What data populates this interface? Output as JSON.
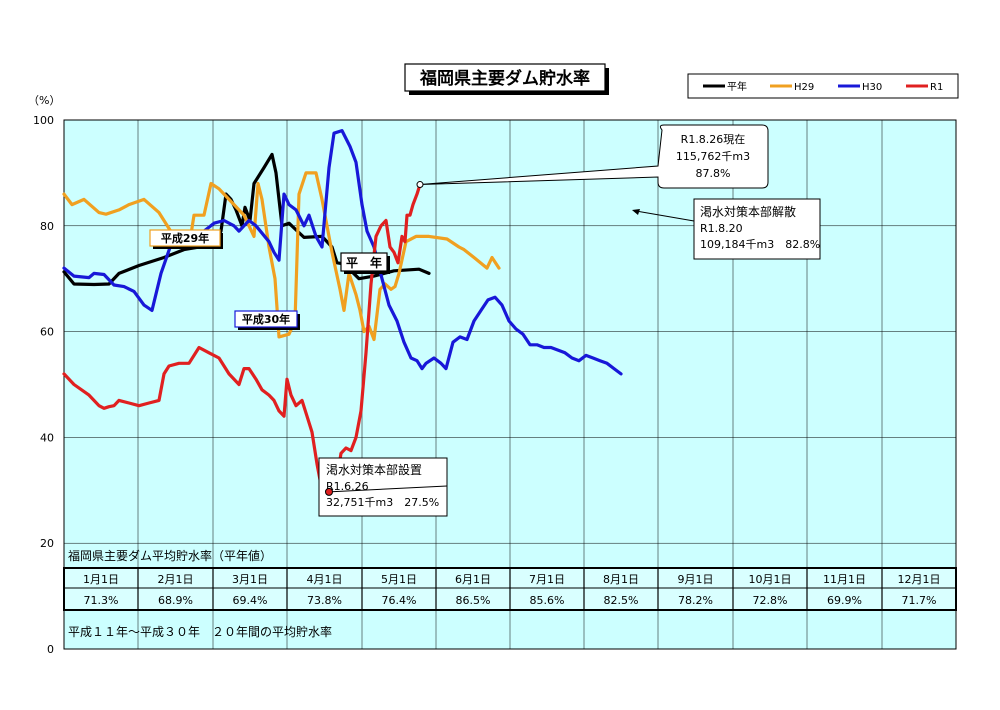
{
  "chart_data": {
    "type": "line",
    "title": "福岡県主要ダム貯水率",
    "ylabel": "（%）",
    "ylim": [
      0,
      100
    ],
    "yticks": [
      0,
      20,
      40,
      60,
      80,
      100
    ],
    "grid": true,
    "legend_position": "top-right",
    "series": [
      {
        "key": "avg",
        "name": "平年",
        "color": "#000000",
        "label": "平　年",
        "points": [
          [
            0,
            71.3
          ],
          [
            10,
            69
          ],
          [
            30,
            68.9
          ],
          [
            45,
            69
          ],
          [
            55,
            71
          ],
          [
            75,
            72.5
          ],
          [
            100,
            74
          ],
          [
            120,
            75.5
          ],
          [
            135,
            76
          ],
          [
            145,
            76
          ],
          [
            150,
            76.3
          ],
          [
            152,
            77
          ],
          [
            157,
            79
          ],
          [
            162,
            86
          ],
          [
            167,
            85
          ],
          [
            172,
            83
          ],
          [
            178,
            80
          ],
          [
            181,
            83.5
          ],
          [
            186,
            81
          ],
          [
            190,
            88
          ],
          [
            200,
            91
          ],
          [
            208,
            93.5
          ],
          [
            212,
            90
          ],
          [
            218,
            80
          ],
          [
            225,
            80.5
          ],
          [
            240,
            77.8
          ],
          [
            258,
            78
          ],
          [
            268,
            76
          ],
          [
            273,
            73
          ],
          [
            280,
            72.8
          ],
          [
            295,
            70
          ],
          [
            310,
            70.5
          ],
          [
            330,
            71.5
          ],
          [
            355,
            71.8
          ],
          [
            365,
            71
          ]
        ]
      },
      {
        "key": "h29",
        "name": "H29",
        "color": "#f0a020",
        "label": "平成29年",
        "points": [
          [
            0,
            86
          ],
          [
            8,
            84
          ],
          [
            20,
            85
          ],
          [
            35,
            82.5
          ],
          [
            42,
            82.2
          ],
          [
            55,
            83
          ],
          [
            65,
            84
          ],
          [
            80,
            85
          ],
          [
            95,
            82.5
          ],
          [
            110,
            78
          ],
          [
            120,
            76.5
          ],
          [
            125,
            76
          ],
          [
            130,
            82
          ],
          [
            140,
            82
          ],
          [
            147,
            88
          ],
          [
            155,
            87
          ],
          [
            165,
            85
          ],
          [
            170,
            84
          ],
          [
            180,
            82
          ],
          [
            190,
            78
          ],
          [
            194,
            88
          ],
          [
            198,
            85
          ],
          [
            205,
            76
          ],
          [
            211,
            70
          ],
          [
            215,
            59
          ],
          [
            225,
            59.5
          ],
          [
            231,
            62
          ],
          [
            235,
            86
          ],
          [
            242,
            90
          ],
          [
            252,
            90
          ],
          [
            258,
            85
          ],
          [
            263,
            80
          ],
          [
            268,
            75
          ],
          [
            276,
            68
          ],
          [
            280,
            64
          ],
          [
            285,
            71
          ],
          [
            292,
            67
          ],
          [
            296,
            64
          ],
          [
            300,
            60
          ],
          [
            305,
            61
          ],
          [
            310,
            58.5
          ],
          [
            316,
            68
          ],
          [
            321,
            69
          ],
          [
            327,
            68
          ],
          [
            331,
            68.5
          ],
          [
            335,
            71
          ],
          [
            342,
            77
          ],
          [
            352,
            78
          ],
          [
            365,
            78
          ],
          [
            383,
            77.5
          ],
          [
            395,
            76
          ],
          [
            400,
            75.5
          ],
          [
            410,
            74
          ],
          [
            423,
            72
          ],
          [
            428,
            74
          ],
          [
            435,
            72
          ]
        ]
      },
      {
        "key": "h30",
        "name": "H30",
        "color": "#1818d8",
        "label": "平成30年",
        "points": [
          [
            0,
            72
          ],
          [
            10,
            70.5
          ],
          [
            25,
            70.2
          ],
          [
            30,
            71
          ],
          [
            40,
            70.8
          ],
          [
            50,
            68.8
          ],
          [
            60,
            68.5
          ],
          [
            70,
            67.6
          ],
          [
            80,
            65
          ],
          [
            88,
            64
          ],
          [
            97,
            71
          ],
          [
            108,
            77
          ],
          [
            115,
            78.5
          ],
          [
            122,
            78.5
          ],
          [
            132,
            78
          ],
          [
            140,
            79
          ],
          [
            150,
            80.5
          ],
          [
            160,
            81
          ],
          [
            170,
            80
          ],
          [
            175,
            79
          ],
          [
            180,
            80
          ],
          [
            185,
            81
          ],
          [
            192,
            80
          ],
          [
            205,
            77
          ],
          [
            210,
            75
          ],
          [
            215,
            73.5
          ],
          [
            220,
            86
          ],
          [
            225,
            84
          ],
          [
            232,
            83
          ],
          [
            240,
            80
          ],
          [
            245,
            82
          ],
          [
            252,
            78
          ],
          [
            258,
            76
          ],
          [
            265,
            91
          ],
          [
            270,
            97.5
          ],
          [
            278,
            98
          ],
          [
            286,
            95
          ],
          [
            292,
            92
          ],
          [
            298,
            84
          ],
          [
            303,
            79
          ],
          [
            310,
            76
          ],
          [
            318,
            70
          ],
          [
            325,
            65
          ],
          [
            333,
            62
          ],
          [
            340,
            58
          ],
          [
            347,
            55
          ],
          [
            353,
            54.5
          ],
          [
            358,
            53
          ],
          [
            362,
            54
          ],
          [
            370,
            55
          ],
          [
            377,
            54
          ],
          [
            382,
            53
          ],
          [
            389,
            58
          ],
          [
            396,
            59
          ],
          [
            403,
            58.5
          ],
          [
            410,
            62
          ],
          [
            417,
            64
          ],
          [
            424,
            66
          ],
          [
            431,
            66.5
          ],
          [
            438,
            65
          ],
          [
            445,
            62
          ],
          [
            452,
            60.5
          ],
          [
            459,
            59.5
          ],
          [
            466,
            57.5
          ],
          [
            473,
            57.5
          ],
          [
            480,
            57
          ],
          [
            487,
            57
          ],
          [
            494,
            56.5
          ],
          [
            501,
            56
          ],
          [
            508,
            55
          ],
          [
            515,
            54.5
          ],
          [
            522,
            55.5
          ],
          [
            529,
            55
          ],
          [
            536,
            54.5
          ],
          [
            543,
            54
          ],
          [
            550,
            53
          ],
          [
            557,
            52
          ]
        ]
      },
      {
        "key": "r1",
        "name": "R1",
        "color": "#e02020",
        "points": [
          [
            0,
            52
          ],
          [
            10,
            50
          ],
          [
            25,
            48
          ],
          [
            35,
            46
          ],
          [
            40,
            45.5
          ],
          [
            45,
            45.8
          ],
          [
            50,
            46
          ],
          [
            55,
            47
          ],
          [
            65,
            46.5
          ],
          [
            75,
            46
          ],
          [
            85,
            46.5
          ],
          [
            95,
            47
          ],
          [
            100,
            52
          ],
          [
            105,
            53.5
          ],
          [
            115,
            54
          ],
          [
            125,
            54
          ],
          [
            135,
            57
          ],
          [
            145,
            56
          ],
          [
            155,
            55
          ],
          [
            165,
            52
          ],
          [
            175,
            50
          ],
          [
            180,
            53
          ],
          [
            185,
            53
          ],
          [
            192,
            51
          ],
          [
            198,
            49
          ],
          [
            205,
            48
          ],
          [
            210,
            47
          ],
          [
            215,
            45
          ],
          [
            220,
            44
          ],
          [
            223,
            51
          ],
          [
            227,
            48
          ],
          [
            232,
            46
          ],
          [
            238,
            47
          ],
          [
            243,
            44
          ],
          [
            248,
            41
          ],
          [
            253,
            35
          ],
          [
            258,
            30
          ],
          [
            263,
            27
          ],
          [
            267,
            27
          ],
          [
            272,
            31
          ],
          [
            277,
            37
          ],
          [
            282,
            38
          ],
          [
            287,
            37.5
          ],
          [
            292,
            40
          ],
          [
            297,
            45
          ],
          [
            302,
            56
          ],
          [
            307,
            69
          ],
          [
            312,
            78
          ],
          [
            317,
            80
          ],
          [
            322,
            81
          ],
          [
            326,
            76
          ],
          [
            330,
            75
          ],
          [
            334,
            73
          ],
          [
            338,
            78
          ],
          [
            341,
            77
          ],
          [
            343,
            82
          ],
          [
            346,
            82
          ],
          [
            349,
            84
          ],
          [
            353,
            86
          ],
          [
            356,
            87.8
          ]
        ]
      }
    ],
    "legend": [
      "平年",
      "H29",
      "H30",
      "R1"
    ],
    "annotations": {
      "current": [
        "R1.8.26現在",
        "115,762千m3",
        "87.8%"
      ],
      "release": [
        "渇水対策本部解散",
        "R1.8.20",
        "109,184千m3　82.8%"
      ],
      "setup": [
        "渇水対策本部設置",
        "R1.6.26",
        "32,751千m3　27.5%"
      ]
    },
    "table": {
      "title": "福岡県主要ダム平均貯水率（平年値）",
      "months": [
        "1月1日",
        "2月1日",
        "3月1日",
        "4月1日",
        "5月1日",
        "6月1日",
        "7月1日",
        "8月1日",
        "9月1日",
        "10月1日",
        "11月1日",
        "12月1日"
      ],
      "values": [
        "71.3%",
        "68.9%",
        "69.4%",
        "73.8%",
        "76.4%",
        "86.5%",
        "85.6%",
        "82.5%",
        "78.2%",
        "72.8%",
        "69.9%",
        "71.7%"
      ],
      "note": "平成１１年～平成３０年　２０年間の平均貯水率"
    }
  }
}
